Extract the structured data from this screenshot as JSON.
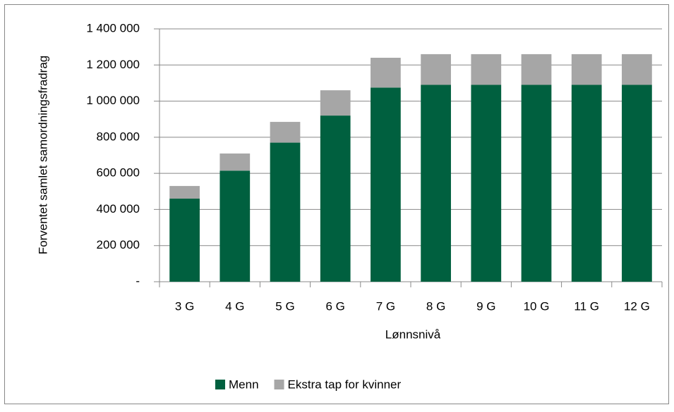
{
  "chart_data": {
    "type": "stacked_bar",
    "x_label": "Lønnsnivå",
    "y_label": "Forventet samlet samordningsfradrag",
    "categories": [
      "3 G",
      "4 G",
      "5 G",
      "6 G",
      "7 G",
      "8 G",
      "9 G",
      "10 G",
      "11 G",
      "12 G"
    ],
    "series": [
      {
        "name": "Menn",
        "color": "#00603f",
        "values": [
          460000,
          615000,
          770000,
          920000,
          1075000,
          1090000,
          1090000,
          1090000,
          1090000,
          1090000
        ]
      },
      {
        "name": "Ekstra tap for kvinner",
        "color": "#a6a6a6",
        "values": [
          70000,
          95000,
          115000,
          140000,
          165000,
          170000,
          170000,
          170000,
          170000,
          170000
        ]
      }
    ],
    "ylim": [
      0,
      1400000
    ],
    "yticks": [
      {
        "value": 0,
        "label": "-"
      },
      {
        "value": 200000,
        "label": "200 000"
      },
      {
        "value": 400000,
        "label": "400 000"
      },
      {
        "value": 600000,
        "label": "600 000"
      },
      {
        "value": 800000,
        "label": "800 000"
      },
      {
        "value": 1000000,
        "label": "1 000 000"
      },
      {
        "value": 1200000,
        "label": "1 200 000"
      },
      {
        "value": 1400000,
        "label": "1 400 000"
      }
    ],
    "grid": true,
    "legend": "bottom"
  }
}
